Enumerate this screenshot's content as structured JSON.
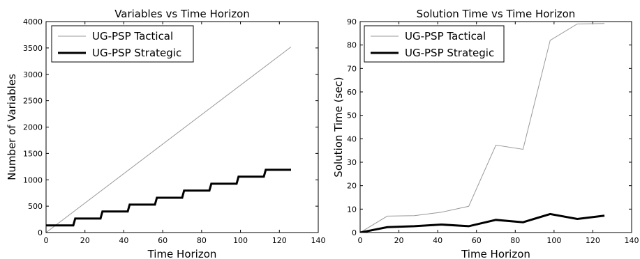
{
  "chart_data": [
    {
      "type": "line",
      "title": "Variables vs Time Horizon",
      "xlabel": "Time Horizon",
      "ylabel": "Number of Variables",
      "xlim": [
        0,
        140
      ],
      "ylim": [
        0,
        4000
      ],
      "xticks": [
        0,
        20,
        40,
        60,
        80,
        100,
        120,
        140
      ],
      "yticks": [
        0,
        500,
        1000,
        1500,
        2000,
        2500,
        3000,
        3500,
        4000
      ],
      "grid": false,
      "legend_position": "top-left",
      "series": [
        {
          "name": "UG-PSP Tactical",
          "color": "#999999",
          "style": "thin",
          "x": [
            0,
            126
          ],
          "y": [
            0,
            3520
          ]
        },
        {
          "name": "UG-PSP Strategic",
          "color": "#000000",
          "style": "thick",
          "x": [
            0,
            14,
            15,
            28,
            29,
            42,
            43,
            56,
            57,
            70,
            71,
            84,
            85,
            98,
            99,
            112,
            113,
            126
          ],
          "y": [
            135,
            135,
            265,
            265,
            400,
            400,
            530,
            530,
            660,
            660,
            795,
            795,
            925,
            925,
            1060,
            1060,
            1190,
            1190
          ]
        }
      ]
    },
    {
      "type": "line",
      "title": "Solution Time vs Time Horizon",
      "xlabel": "Time Horizon",
      "ylabel": "Solution Time (sec)",
      "xlim": [
        0,
        140
      ],
      "ylim": [
        0,
        90
      ],
      "xticks": [
        0,
        20,
        40,
        60,
        80,
        100,
        120,
        140
      ],
      "yticks": [
        0,
        10,
        20,
        30,
        40,
        50,
        60,
        70,
        80,
        90
      ],
      "grid": false,
      "legend_position": "top-left",
      "series": [
        {
          "name": "UG-PSP Tactical",
          "color": "#999999",
          "style": "thin",
          "x": [
            0,
            14,
            28,
            42,
            56,
            70,
            84,
            98,
            112,
            126
          ],
          "y": [
            0,
            7,
            7.2,
            8.7,
            11.2,
            37.3,
            35.5,
            82,
            89,
            89.2
          ]
        },
        {
          "name": "UG-PSP Strategic",
          "color": "#000000",
          "style": "thick",
          "x": [
            0,
            14,
            28,
            42,
            56,
            70,
            84,
            98,
            112,
            126
          ],
          "y": [
            0,
            2.3,
            2.7,
            3.4,
            2.7,
            5.4,
            4.4,
            7.9,
            5.8,
            7.2
          ]
        }
      ]
    }
  ]
}
